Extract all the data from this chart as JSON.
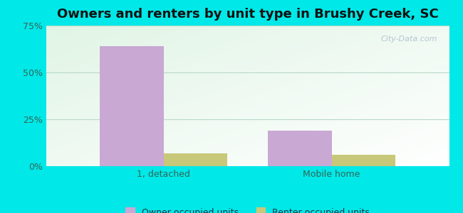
{
  "title": "Owners and renters by unit type in Brushy Creek, SC",
  "categories": [
    "1, detached",
    "Mobile home"
  ],
  "owner_values": [
    64.0,
    19.0
  ],
  "renter_values": [
    7.0,
    6.0
  ],
  "owner_color": "#c9a8d4",
  "renter_color": "#c8c87a",
  "ylim": [
    0,
    75
  ],
  "yticks": [
    0,
    25,
    50,
    75
  ],
  "ytick_labels": [
    "0%",
    "25%",
    "50%",
    "75%"
  ],
  "bar_width": 0.38,
  "background_color": "#00e8e8",
  "legend_owner": "Owner occupied units",
  "legend_renter": "Renter occupied units",
  "watermark": "City-Data.com",
  "title_fontsize": 13,
  "tick_fontsize": 9,
  "legend_fontsize": 9,
  "grad_colors": [
    "#d8ede0",
    "#eaf5ec",
    "#f2f9f5",
    "#f8fcfa"
  ],
  "grid_color": "#c8ddd0"
}
